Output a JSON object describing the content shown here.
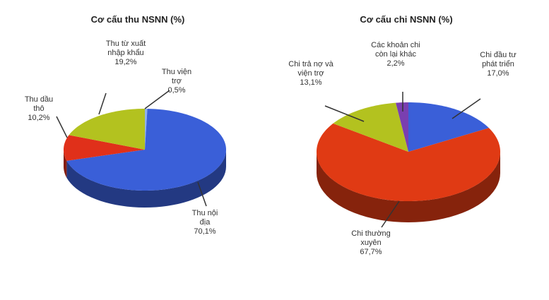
{
  "chart_data": [
    {
      "type": "pie",
      "title": "Cơ cấu thu NSNN (%)",
      "categories": [
        "Thu viện trợ",
        "Thu nội địa",
        "Thu dầu thô",
        "Thu từ xuất nhập khẩu"
      ],
      "values": [
        0.5,
        70.1,
        10.2,
        19.2
      ],
      "value_labels": [
        "0,5%",
        "70,1%",
        "10,2%",
        "19,2%"
      ],
      "colors": [
        "#8fb0ee",
        "#3a5fd8",
        "#e0301a",
        "#b3c21f"
      ]
    },
    {
      "type": "pie",
      "title": "Cơ cấu chi NSNN (%)",
      "categories": [
        "Chi đầu tư phát triển",
        "Chi thường xuyên",
        "Chi trả nợ và viện trợ",
        "Các khoản chi còn lại khác"
      ],
      "values": [
        17.0,
        67.7,
        13.1,
        2.2
      ],
      "value_labels": [
        "17,0%",
        "67,7%",
        "13,1%",
        "2,2%"
      ],
      "colors": [
        "#3a5fd8",
        "#e03a14",
        "#b3c21f",
        "#7a3fb0"
      ]
    }
  ]
}
